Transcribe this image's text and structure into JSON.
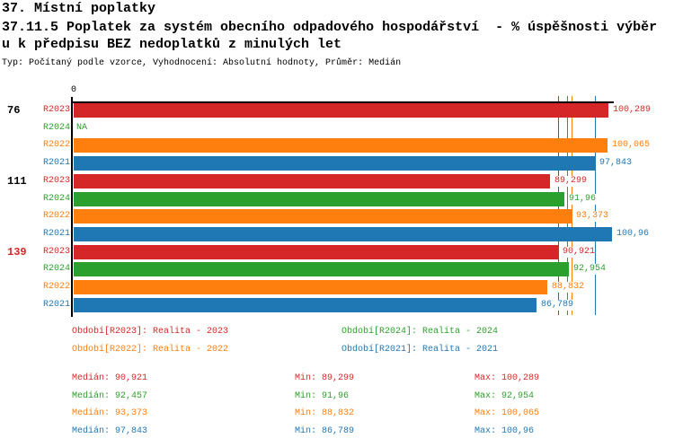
{
  "header": {
    "line1": "37. Místní poplatky",
    "line2": "37.11.5 Poplatek za systém obecního odpadového hospodářství  - % úspěšnosti výběr",
    "line3": "u k předpisu BEZ nedoplatků z minulých let",
    "meta": "Typ: Počítaný podle vzorce, Vyhodnocení: Absolutní hodnoty, Průměr: Medián"
  },
  "colors": {
    "red": "#d62728",
    "green": "#2ca02c",
    "orange": "#ff7f0e",
    "blue": "#1f77b4",
    "black": "#000000"
  },
  "chart_data": {
    "type": "bar",
    "orientation": "horizontal",
    "x_axis_position": "top",
    "origin_label": "0",
    "xlim": [
      0,
      101.3
    ],
    "grid": false,
    "value_format": "czech-decimal-comma",
    "groups": [
      {
        "label": "76",
        "label_color_key": "black",
        "rows": [
          {
            "series": "R2023",
            "color_key": "red",
            "value": 100.289,
            "value_label": "100,289"
          },
          {
            "series": "R2024",
            "color_key": "green",
            "value": null,
            "value_label": "NA"
          },
          {
            "series": "R2022",
            "color_key": "orange",
            "value": 100.065,
            "value_label": "100,065"
          },
          {
            "series": "R2021",
            "color_key": "blue",
            "value": 97.843,
            "value_label": "97,843"
          }
        ]
      },
      {
        "label": "111",
        "label_color_key": "black",
        "rows": [
          {
            "series": "R2023",
            "color_key": "red",
            "value": 89.299,
            "value_label": "89,299"
          },
          {
            "series": "R2024",
            "color_key": "green",
            "value": 91.96,
            "value_label": "91,96"
          },
          {
            "series": "R2022",
            "color_key": "orange",
            "value": 93.373,
            "value_label": "93,373"
          },
          {
            "series": "R2021",
            "color_key": "blue",
            "value": 100.96,
            "value_label": "100,96"
          }
        ]
      },
      {
        "label": "139",
        "label_color_key": "red",
        "rows": [
          {
            "series": "R2023",
            "color_key": "red",
            "value": 90.921,
            "value_label": "90,921"
          },
          {
            "series": "R2024",
            "color_key": "green",
            "value": 92.954,
            "value_label": "92,954"
          },
          {
            "series": "R2022",
            "color_key": "orange",
            "value": 88.832,
            "value_label": "88,832"
          },
          {
            "series": "R2021",
            "color_key": "blue",
            "value": 86.789,
            "value_label": "86,789"
          }
        ]
      }
    ],
    "median_lines": [
      {
        "color_key": "red",
        "value": 90.921
      },
      {
        "color_key": "green",
        "value": 92.457
      },
      {
        "color_key": "orange",
        "value": 93.373
      },
      {
        "color_key": "blue",
        "value": 97.843
      }
    ]
  },
  "legend": {
    "items": [
      {
        "label": "Období[R2023]: Realita - 2023",
        "color_key": "red"
      },
      {
        "label": "Období[R2024]: Realita - 2024",
        "color_key": "green"
      },
      {
        "label": "Období[R2022]: Realita - 2022",
        "color_key": "orange"
      },
      {
        "label": "Období[R2021]: Realita - 2021",
        "color_key": "blue"
      }
    ]
  },
  "stats": {
    "rows": [
      {
        "color_key": "red",
        "median": "Medián: 90,921",
        "min": "Min: 89,299",
        "max": "Max: 100,289"
      },
      {
        "color_key": "green",
        "median": "Medián: 92,457",
        "min": "Min: 91,96",
        "max": "Max: 92,954"
      },
      {
        "color_key": "orange",
        "median": "Medián: 93,373",
        "min": "Min: 88,832",
        "max": "Max: 100,065"
      },
      {
        "color_key": "blue",
        "median": "Medián: 97,843",
        "min": "Min: 86,789",
        "max": "Max: 100,96"
      }
    ]
  }
}
